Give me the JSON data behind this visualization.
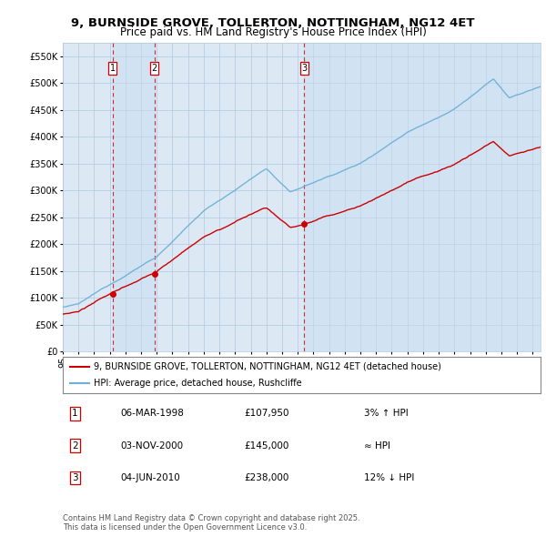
{
  "title": "9, BURNSIDE GROVE, TOLLERTON, NOTTINGHAM, NG12 4ET",
  "subtitle": "Price paid vs. HM Land Registry's House Price Index (HPI)",
  "ylim": [
    0,
    575000
  ],
  "yticks": [
    0,
    50000,
    100000,
    150000,
    200000,
    250000,
    300000,
    350000,
    400000,
    450000,
    500000,
    550000
  ],
  "ytick_labels": [
    "£0",
    "£50K",
    "£100K",
    "£150K",
    "£200K",
    "£250K",
    "£300K",
    "£350K",
    "£400K",
    "£450K",
    "£500K",
    "£550K"
  ],
  "hpi_color": "#6baed6",
  "price_color": "#cc0000",
  "vline_color": "#cc0000",
  "dot_color": "#cc0000",
  "background_color": "#ffffff",
  "chart_bg_color": "#dce9f5",
  "shade_color": "#c8ddf0",
  "grid_color": "#b0c8e0",
  "sale1_date": 1998.17,
  "sale2_date": 2000.84,
  "sale3_date": 2010.42,
  "sale1_price": 107950,
  "sale2_price": 145000,
  "sale3_price": 238000,
  "legend_line1": "9, BURNSIDE GROVE, TOLLERTON, NOTTINGHAM, NG12 4ET (detached house)",
  "legend_line2": "HPI: Average price, detached house, Rushcliffe",
  "table_entries": [
    {
      "num": "1",
      "date": "06-MAR-1998",
      "price": "£107,950",
      "note": "3% ↑ HPI"
    },
    {
      "num": "2",
      "date": "03-NOV-2000",
      "price": "£145,000",
      "note": "≈ HPI"
    },
    {
      "num": "3",
      "date": "04-JUN-2010",
      "price": "£238,000",
      "note": "12% ↓ HPI"
    }
  ],
  "footer": "Contains HM Land Registry data © Crown copyright and database right 2025.\nThis data is licensed under the Open Government Licence v3.0.",
  "title_fontsize": 9.5,
  "subtitle_fontsize": 8.5,
  "tick_fontsize": 7,
  "legend_fontsize": 7,
  "table_fontsize": 7.5,
  "footer_fontsize": 6
}
